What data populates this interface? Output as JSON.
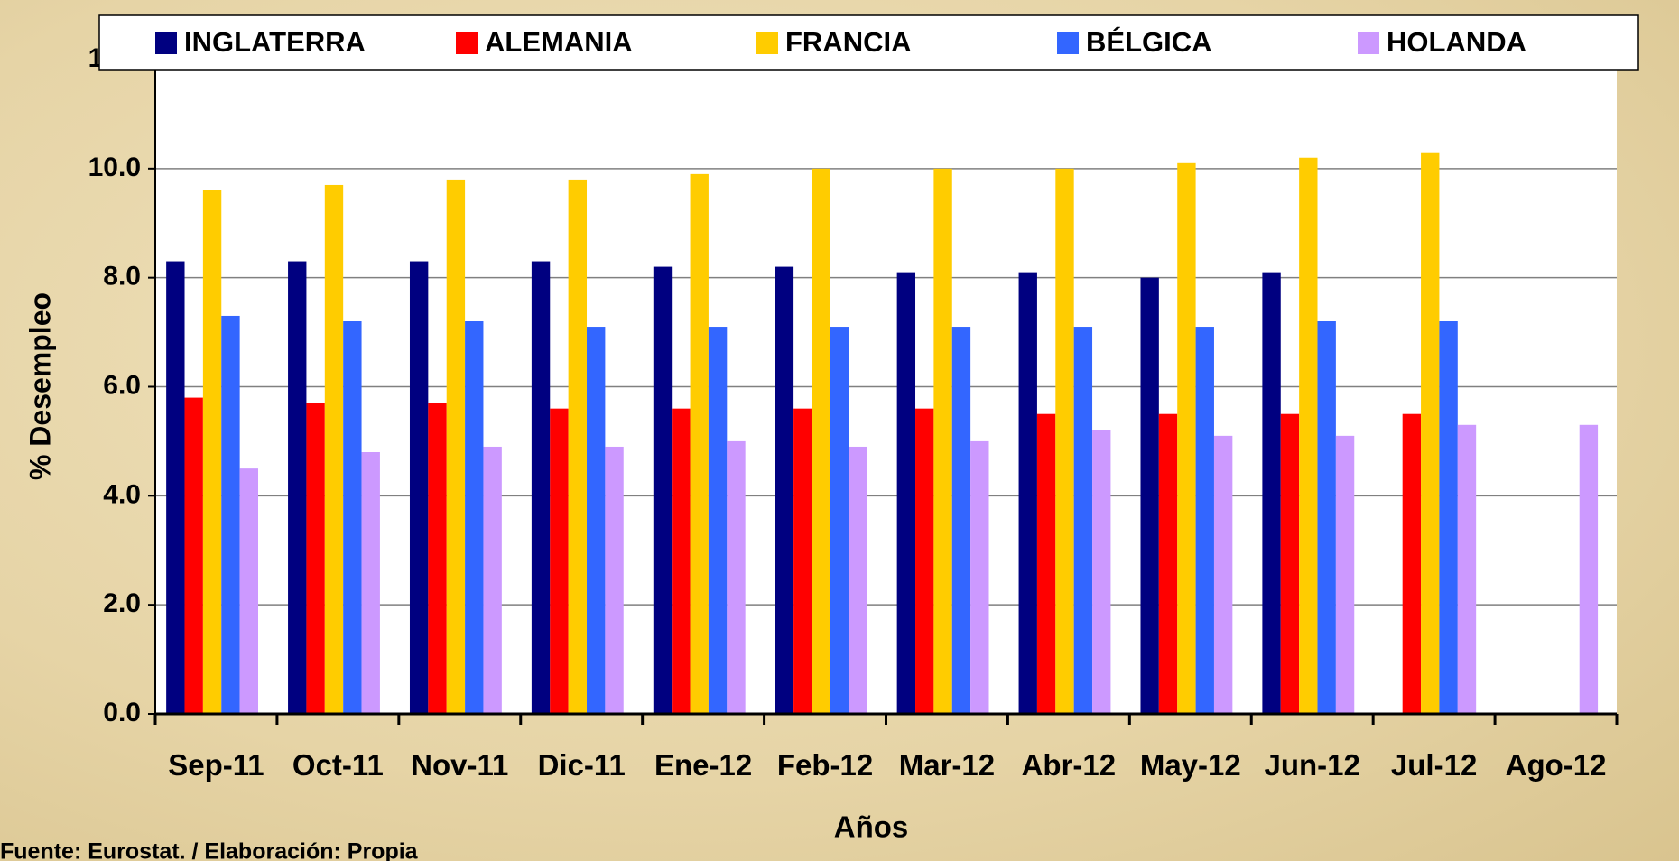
{
  "chart_data": {
    "type": "bar",
    "categories": [
      "Sep-11",
      "Oct-11",
      "Nov-11",
      "Dic-11",
      "Ene-12",
      "Feb-12",
      "Mar-12",
      "Abr-12",
      "May-12",
      "Jun-12",
      "Jul-12",
      "Ago-12"
    ],
    "series": [
      {
        "name": "INGLATERRA",
        "color": "#000080",
        "values": [
          8.3,
          8.3,
          8.3,
          8.3,
          8.2,
          8.2,
          8.1,
          8.1,
          8.0,
          8.1,
          null,
          null
        ]
      },
      {
        "name": "ALEMANIA",
        "color": "#ff0000",
        "values": [
          5.8,
          5.7,
          5.7,
          5.6,
          5.6,
          5.6,
          5.6,
          5.5,
          5.5,
          5.5,
          5.5,
          null
        ]
      },
      {
        "name": "FRANCIA",
        "color": "#ffcc00",
        "values": [
          9.6,
          9.7,
          9.8,
          9.8,
          9.9,
          10.0,
          10.0,
          10.0,
          10.1,
          10.2,
          10.3,
          null
        ]
      },
      {
        "name": "BÉLGICA",
        "color": "#3366ff",
        "values": [
          7.3,
          7.2,
          7.2,
          7.1,
          7.1,
          7.1,
          7.1,
          7.1,
          7.1,
          7.2,
          7.2,
          null
        ]
      },
      {
        "name": "HOLANDA",
        "color": "#cc99ff",
        "values": [
          4.5,
          4.8,
          4.9,
          4.9,
          5.0,
          4.9,
          5.0,
          5.2,
          5.1,
          5.1,
          5.3,
          5.3
        ]
      }
    ],
    "ylim": [
      0,
      12
    ],
    "yticks": [
      {
        "value": 0,
        "label": "0.0"
      },
      {
        "value": 2,
        "label": "2.0"
      },
      {
        "value": 4,
        "label": "4.0"
      },
      {
        "value": 6,
        "label": "6.0"
      },
      {
        "value": 8,
        "label": "8.0"
      },
      {
        "value": 10,
        "label": "10.0"
      },
      {
        "value": 12,
        "label": "12.0"
      }
    ],
    "ylabel": "% Desempleo",
    "xlabel": "Años",
    "source": "Fuente: Eurostat. / Elaboración: Propia",
    "grid": true,
    "legend": "top"
  }
}
